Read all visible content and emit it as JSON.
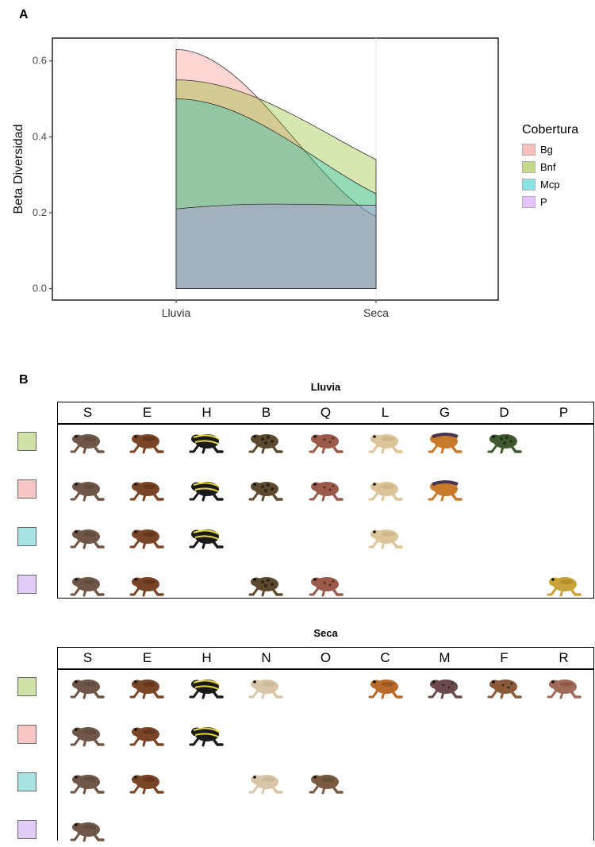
{
  "panel_a": {
    "letter": "A",
    "chart_data": {
      "type": "area",
      "x": [
        "Lluvia",
        "Seca"
      ],
      "ylabel": "Beta Diversidad",
      "xlabel": "",
      "ylim": [
        -0.03,
        0.66
      ],
      "yticks": [
        "0.0",
        "0.2",
        "0.4",
        "0.6"
      ],
      "ytick_values": [
        0.0,
        0.2,
        0.4,
        0.6
      ],
      "legend_title": "Cobertura",
      "legend_position": "right",
      "series": [
        {
          "name": "Bg",
          "values": [
            0.63,
            0.19
          ],
          "color": "#F8766D"
        },
        {
          "name": "Bnf",
          "values": [
            0.55,
            0.34
          ],
          "color": "#7CAE00"
        },
        {
          "name": "Mcp",
          "values": [
            0.5,
            0.25
          ],
          "color": "#00BFC4"
        },
        {
          "name": "P",
          "values": [
            0.21,
            0.22
          ],
          "color": "#C77CFF"
        }
      ]
    }
  },
  "panel_b": {
    "letter": "B",
    "tables": [
      {
        "title": "Lluvia",
        "columns": [
          "S",
          "E",
          "H",
          "B",
          "Q",
          "L",
          "G",
          "D",
          "P"
        ],
        "rows": [
          {
            "color": "#cfe3a8",
            "present": [
              "S",
              "E",
              "H",
              "B",
              "Q",
              "L",
              "G",
              "D"
            ]
          },
          {
            "color": "#f7c7c7",
            "present": [
              "S",
              "E",
              "H",
              "B",
              "Q",
              "L",
              "G"
            ]
          },
          {
            "color": "#a7e3e3",
            "present": [
              "S",
              "E",
              "H",
              "L"
            ]
          },
          {
            "color": "#e1cdf7",
            "present": [
              "S",
              "E",
              "B",
              "Q",
              "P"
            ]
          }
        ]
      },
      {
        "title": "Seca",
        "columns": [
          "S",
          "E",
          "H",
          "N",
          "O",
          "C",
          "M",
          "F",
          "R"
        ],
        "rows": [
          {
            "color": "#cfe3a8",
            "present": [
              "S",
              "E",
              "H",
              "N",
              "C",
              "M",
              "F",
              "R"
            ]
          },
          {
            "color": "#f7c7c7",
            "present": [
              "S",
              "E",
              "H"
            ]
          },
          {
            "color": "#a7e3e3",
            "present": [
              "S",
              "E",
              "N",
              "O"
            ]
          },
          {
            "color": "#e1cdf7",
            "present": [
              "S"
            ]
          }
        ]
      }
    ],
    "species_colors": {
      "S": {
        "body": "#6e5748",
        "spot": "#4a3a30",
        "pattern": "plain"
      },
      "E": {
        "body": "#7a4426",
        "spot": "#3d1f10",
        "pattern": "plain"
      },
      "H": {
        "body": "#1a1a1a",
        "spot": "#e7d83a",
        "pattern": "stripes"
      },
      "B": {
        "body": "#5c4a30",
        "spot": "#2e2415",
        "pattern": "warts"
      },
      "Q": {
        "body": "#9b5a4a",
        "spot": "#5a2e22",
        "pattern": "spots"
      },
      "L": {
        "body": "#dcc59a",
        "spot": "#b89e6c",
        "pattern": "plain"
      },
      "G": {
        "body": "#c87a2a",
        "spot": "#4a3550",
        "pattern": "stripe-top"
      },
      "D": {
        "body": "#3f5a30",
        "spot": "#223318",
        "pattern": "warts"
      },
      "P": {
        "body": "#c9a23a",
        "spot": "#8a6a1a",
        "pattern": "plain"
      },
      "N": {
        "body": "#d9c6a8",
        "spot": "#b39e80",
        "pattern": "plain"
      },
      "O": {
        "body": "#7a5a40",
        "spot": "#2f4a2f",
        "pattern": "plain"
      },
      "C": {
        "body": "#b86a2a",
        "spot": "#6a3a14",
        "pattern": "plain"
      },
      "M": {
        "body": "#6a4a4a",
        "spot": "#3a2a2a",
        "pattern": "spots"
      },
      "F": {
        "body": "#8a5a3a",
        "spot": "#3a2a1a",
        "pattern": "spots"
      },
      "R": {
        "body": "#a06a5a",
        "spot": "#6a3a30",
        "pattern": "plain"
      }
    }
  }
}
